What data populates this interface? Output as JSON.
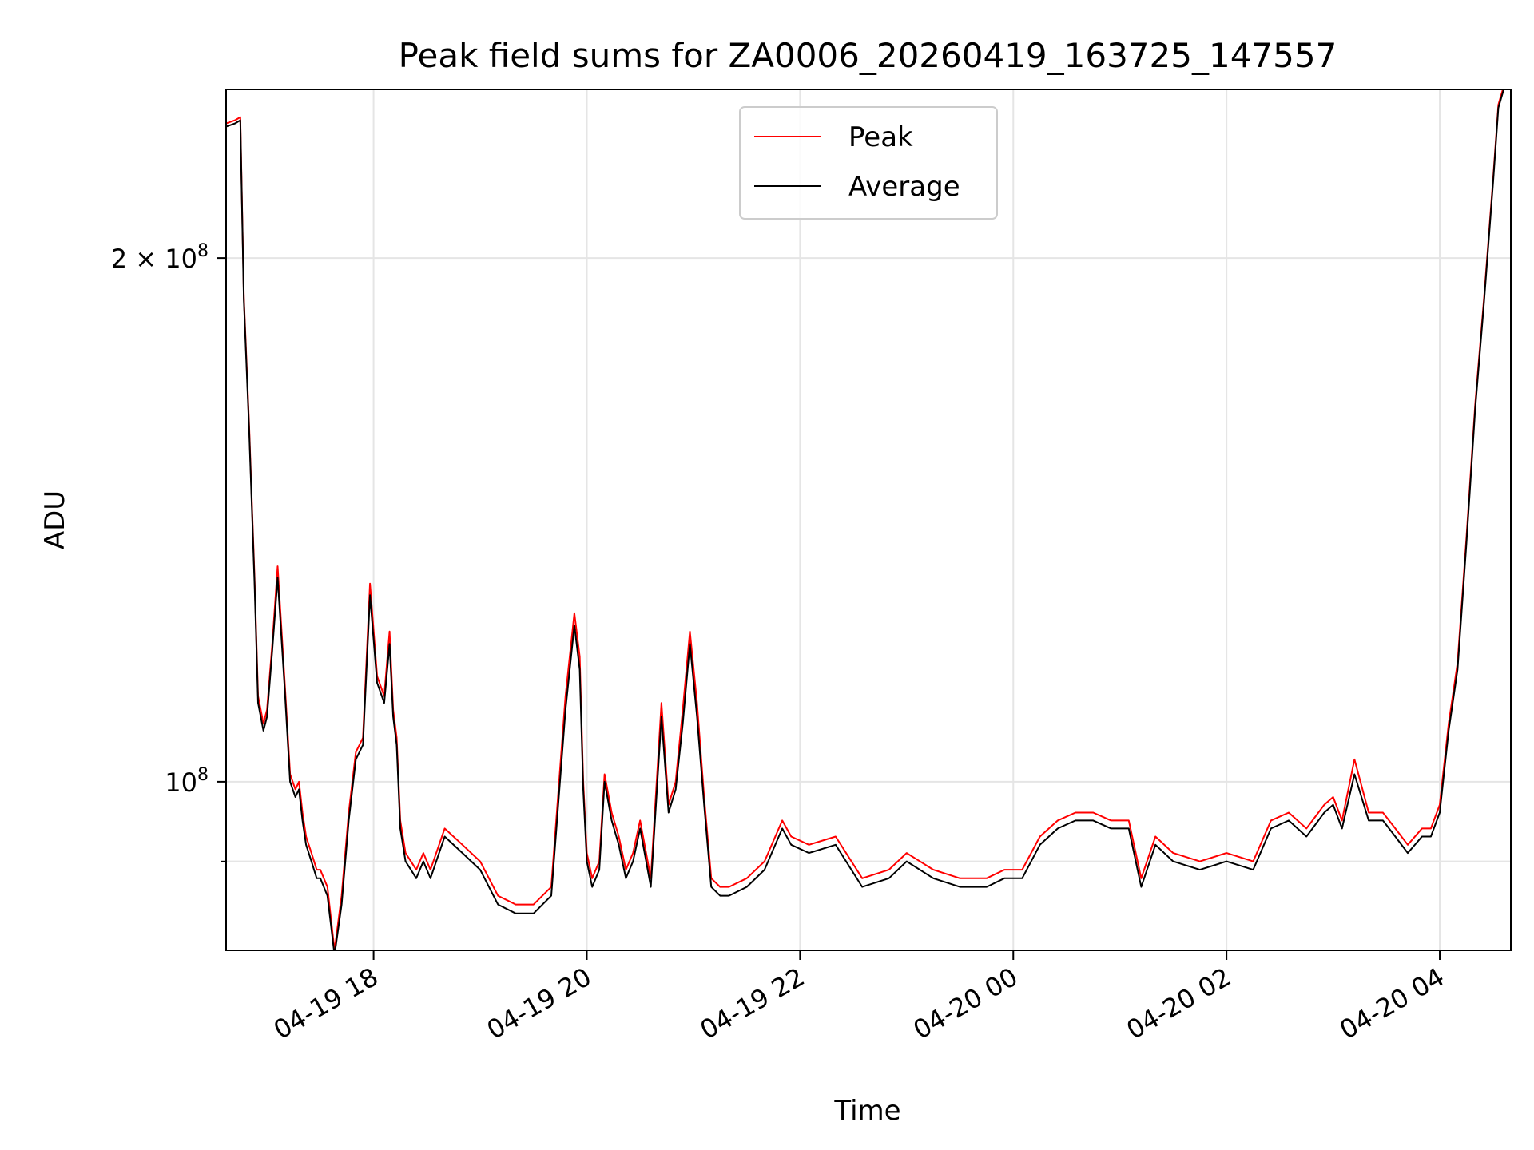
{
  "chart_data": {
    "type": "line",
    "title": "Peak field sums for ZA0006_20260419_163725_147557",
    "xlabel": "Time",
    "ylabel": "ADU",
    "y_scale": "log",
    "grid": true,
    "legend_placement": "upper-center",
    "xlim": [
      "2026-04-19 16:37",
      "2026-04-20 04:40"
    ],
    "ylim": [
      80000000,
      250000000
    ],
    "x_ticks": [
      {
        "value": "2026-04-19 18:00",
        "label": "04-19 18"
      },
      {
        "value": "2026-04-19 20:00",
        "label": "04-19 20"
      },
      {
        "value": "2026-04-19 22:00",
        "label": "04-19 22"
      },
      {
        "value": "2026-04-20 00:00",
        "label": "04-20 00"
      },
      {
        "value": "2026-04-20 02:00",
        "label": "04-20 02"
      },
      {
        "value": "2026-04-20 04:00",
        "label": "04-20 04"
      }
    ],
    "y_ticks": [
      {
        "value": 100000000,
        "base": "10",
        "exp": "8"
      },
      {
        "value": 200000000,
        "base": "2 × 10",
        "exp": "8"
      }
    ],
    "y_minor_gridlines": [
      90000000
    ],
    "series": [
      {
        "name": "Peak",
        "color": "#ff0000",
        "x": [
          "2026-04-19 16:37",
          "2026-04-19 16:42",
          "2026-04-19 16:45",
          "2026-04-19 16:47",
          "2026-04-19 16:50",
          "2026-04-19 16:53",
          "2026-04-19 16:55",
          "2026-04-19 16:58",
          "2026-04-19 17:00",
          "2026-04-19 17:03",
          "2026-04-19 17:06",
          "2026-04-19 17:10",
          "2026-04-19 17:13",
          "2026-04-19 17:16",
          "2026-04-19 17:18",
          "2026-04-19 17:20",
          "2026-04-19 17:22",
          "2026-04-19 17:25",
          "2026-04-19 17:28",
          "2026-04-19 17:30",
          "2026-04-19 17:34",
          "2026-04-19 17:38",
          "2026-04-19 17:42",
          "2026-04-19 17:46",
          "2026-04-19 17:50",
          "2026-04-19 17:54",
          "2026-04-19 17:58",
          "2026-04-19 18:02",
          "2026-04-19 18:06",
          "2026-04-19 18:09",
          "2026-04-19 18:11",
          "2026-04-19 18:13",
          "2026-04-19 18:15",
          "2026-04-19 18:18",
          "2026-04-19 18:21",
          "2026-04-19 18:24",
          "2026-04-19 18:28",
          "2026-04-19 18:32",
          "2026-04-19 18:40",
          "2026-04-19 18:50",
          "2026-04-19 19:00",
          "2026-04-19 19:10",
          "2026-04-19 19:20",
          "2026-04-19 19:30",
          "2026-04-19 19:40",
          "2026-04-19 19:48",
          "2026-04-19 19:53",
          "2026-04-19 19:56",
          "2026-04-19 19:58",
          "2026-04-19 20:00",
          "2026-04-19 20:03",
          "2026-04-19 20:07",
          "2026-04-19 20:10",
          "2026-04-19 20:14",
          "2026-04-19 20:18",
          "2026-04-19 20:22",
          "2026-04-19 20:26",
          "2026-04-19 20:30",
          "2026-04-19 20:36",
          "2026-04-19 20:42",
          "2026-04-19 20:46",
          "2026-04-19 20:50",
          "2026-04-19 20:54",
          "2026-04-19 20:58",
          "2026-04-19 21:02",
          "2026-04-19 21:06",
          "2026-04-19 21:10",
          "2026-04-19 21:15",
          "2026-04-19 21:20",
          "2026-04-19 21:30",
          "2026-04-19 21:40",
          "2026-04-19 21:50",
          "2026-04-19 21:55",
          "2026-04-19 22:05",
          "2026-04-19 22:20",
          "2026-04-19 22:35",
          "2026-04-19 22:50",
          "2026-04-19 23:00",
          "2026-04-19 23:15",
          "2026-04-19 23:30",
          "2026-04-19 23:45",
          "2026-04-19 23:55",
          "2026-04-20 00:05",
          "2026-04-20 00:15",
          "2026-04-20 00:25",
          "2026-04-20 00:35",
          "2026-04-20 00:45",
          "2026-04-20 00:55",
          "2026-04-20 01:05",
          "2026-04-20 01:12",
          "2026-04-20 01:20",
          "2026-04-20 01:30",
          "2026-04-20 01:45",
          "2026-04-20 02:00",
          "2026-04-20 02:15",
          "2026-04-20 02:25",
          "2026-04-20 02:35",
          "2026-04-20 02:45",
          "2026-04-20 02:55",
          "2026-04-20 03:00",
          "2026-04-20 03:05",
          "2026-04-20 03:12",
          "2026-04-20 03:20",
          "2026-04-20 03:28",
          "2026-04-20 03:35",
          "2026-04-20 03:42",
          "2026-04-20 03:50",
          "2026-04-20 03:55",
          "2026-04-20 04:00",
          "2026-04-20 04:05",
          "2026-04-20 04:10",
          "2026-04-20 04:15",
          "2026-04-20 04:20",
          "2026-04-20 04:25",
          "2026-04-20 04:30",
          "2026-04-20 04:33",
          "2026-04-20 04:36"
        ],
        "values": [
          239000000,
          240000000,
          241000000,
          190000000,
          160000000,
          131000000,
          112000000,
          108000000,
          110000000,
          120000000,
          133000000,
          114000000,
          101000000,
          99000000,
          100000000,
          96000000,
          93000000,
          91000000,
          89000000,
          89000000,
          87000000,
          80000000,
          86000000,
          96000000,
          104000000,
          106000000,
          130000000,
          115000000,
          112000000,
          122000000,
          110000000,
          106000000,
          95000000,
          91000000,
          90000000,
          89000000,
          91000000,
          89000000,
          94000000,
          92000000,
          90000000,
          86000000,
          85000000,
          85000000,
          87000000,
          112000000,
          125000000,
          118000000,
          100000000,
          91000000,
          88000000,
          90000000,
          101000000,
          96000000,
          93000000,
          89000000,
          91000000,
          95000000,
          88000000,
          111000000,
          97000000,
          100000000,
          110000000,
          122000000,
          111000000,
          98000000,
          88000000,
          87000000,
          87000000,
          88000000,
          90000000,
          95000000,
          93000000,
          92000000,
          93000000,
          88000000,
          89000000,
          91000000,
          89000000,
          88000000,
          88000000,
          89000000,
          89000000,
          93000000,
          95000000,
          96000000,
          96000000,
          95000000,
          95000000,
          88000000,
          93000000,
          91000000,
          90000000,
          91000000,
          90000000,
          95000000,
          96000000,
          94000000,
          97000000,
          98000000,
          95000000,
          103000000,
          96000000,
          96000000,
          94000000,
          92000000,
          94000000,
          94000000,
          97000000,
          108000000,
          117000000,
          138000000,
          165000000,
          190000000,
          222000000,
          245000000,
          251000000
        ]
      },
      {
        "name": "Average",
        "color": "#000000",
        "x": [
          "2026-04-19 16:37",
          "2026-04-19 16:42",
          "2026-04-19 16:45",
          "2026-04-19 16:47",
          "2026-04-19 16:50",
          "2026-04-19 16:53",
          "2026-04-19 16:55",
          "2026-04-19 16:58",
          "2026-04-19 17:00",
          "2026-04-19 17:03",
          "2026-04-19 17:06",
          "2026-04-19 17:10",
          "2026-04-19 17:13",
          "2026-04-19 17:16",
          "2026-04-19 17:18",
          "2026-04-19 17:20",
          "2026-04-19 17:22",
          "2026-04-19 17:25",
          "2026-04-19 17:28",
          "2026-04-19 17:30",
          "2026-04-19 17:34",
          "2026-04-19 17:38",
          "2026-04-19 17:42",
          "2026-04-19 17:46",
          "2026-04-19 17:50",
          "2026-04-19 17:54",
          "2026-04-19 17:58",
          "2026-04-19 18:02",
          "2026-04-19 18:06",
          "2026-04-19 18:09",
          "2026-04-19 18:11",
          "2026-04-19 18:13",
          "2026-04-19 18:15",
          "2026-04-19 18:18",
          "2026-04-19 18:21",
          "2026-04-19 18:24",
          "2026-04-19 18:28",
          "2026-04-19 18:32",
          "2026-04-19 18:40",
          "2026-04-19 18:50",
          "2026-04-19 19:00",
          "2026-04-19 19:10",
          "2026-04-19 19:20",
          "2026-04-19 19:30",
          "2026-04-19 19:40",
          "2026-04-19 19:48",
          "2026-04-19 19:53",
          "2026-04-19 19:56",
          "2026-04-19 19:58",
          "2026-04-19 20:00",
          "2026-04-19 20:03",
          "2026-04-19 20:07",
          "2026-04-19 20:10",
          "2026-04-19 20:14",
          "2026-04-19 20:18",
          "2026-04-19 20:22",
          "2026-04-19 20:26",
          "2026-04-19 20:30",
          "2026-04-19 20:36",
          "2026-04-19 20:42",
          "2026-04-19 20:46",
          "2026-04-19 20:50",
          "2026-04-19 20:54",
          "2026-04-19 20:58",
          "2026-04-19 21:02",
          "2026-04-19 21:06",
          "2026-04-19 21:10",
          "2026-04-19 21:15",
          "2026-04-19 21:20",
          "2026-04-19 21:30",
          "2026-04-19 21:40",
          "2026-04-19 21:50",
          "2026-04-19 21:55",
          "2026-04-19 22:05",
          "2026-04-19 22:20",
          "2026-04-19 22:35",
          "2026-04-19 22:50",
          "2026-04-19 23:00",
          "2026-04-19 23:15",
          "2026-04-19 23:30",
          "2026-04-19 23:45",
          "2026-04-19 23:55",
          "2026-04-20 00:05",
          "2026-04-20 00:15",
          "2026-04-20 00:25",
          "2026-04-20 00:35",
          "2026-04-20 00:45",
          "2026-04-20 00:55",
          "2026-04-20 01:05",
          "2026-04-20 01:12",
          "2026-04-20 01:20",
          "2026-04-20 01:30",
          "2026-04-20 01:45",
          "2026-04-20 02:00",
          "2026-04-20 02:15",
          "2026-04-20 02:25",
          "2026-04-20 02:35",
          "2026-04-20 02:45",
          "2026-04-20 02:55",
          "2026-04-20 03:00",
          "2026-04-20 03:05",
          "2026-04-20 03:12",
          "2026-04-20 03:20",
          "2026-04-20 03:28",
          "2026-04-20 03:35",
          "2026-04-20 03:42",
          "2026-04-20 03:50",
          "2026-04-20 03:55",
          "2026-04-20 04:00",
          "2026-04-20 04:05",
          "2026-04-20 04:10",
          "2026-04-20 04:15",
          "2026-04-20 04:20",
          "2026-04-20 04:25",
          "2026-04-20 04:30",
          "2026-04-20 04:33",
          "2026-04-20 04:36"
        ],
        "values": [
          238000000,
          239000000,
          240000000,
          189000000,
          159000000,
          130000000,
          111000000,
          107000000,
          109000000,
          119000000,
          131000000,
          113000000,
          100000000,
          98000000,
          99000000,
          95000000,
          92000000,
          90000000,
          88000000,
          88000000,
          86000000,
          79500000,
          85000000,
          95000000,
          103000000,
          105000000,
          128000000,
          114000000,
          111000000,
          120000000,
          109000000,
          105000000,
          94000000,
          90000000,
          89000000,
          88000000,
          90000000,
          88000000,
          93000000,
          91000000,
          89000000,
          85000000,
          84000000,
          84000000,
          86000000,
          110000000,
          123000000,
          116000000,
          99000000,
          90000000,
          87000000,
          89000000,
          100000000,
          95000000,
          92000000,
          88000000,
          90000000,
          94000000,
          87000000,
          109000000,
          96000000,
          99000000,
          108000000,
          120000000,
          109000000,
          97000000,
          87000000,
          86000000,
          86000000,
          87000000,
          89000000,
          94000000,
          92000000,
          91000000,
          92000000,
          87000000,
          88000000,
          90000000,
          88000000,
          87000000,
          87000000,
          88000000,
          88000000,
          92000000,
          94000000,
          95000000,
          95000000,
          94000000,
          94000000,
          87000000,
          92000000,
          90000000,
          89000000,
          90000000,
          89000000,
          94000000,
          95000000,
          93000000,
          96000000,
          97000000,
          94000000,
          101000000,
          95000000,
          95000000,
          93000000,
          91000000,
          93000000,
          93000000,
          96000000,
          107000000,
          116000000,
          137000000,
          164000000,
          189000000,
          221000000,
          244000000,
          250000000
        ]
      }
    ]
  }
}
